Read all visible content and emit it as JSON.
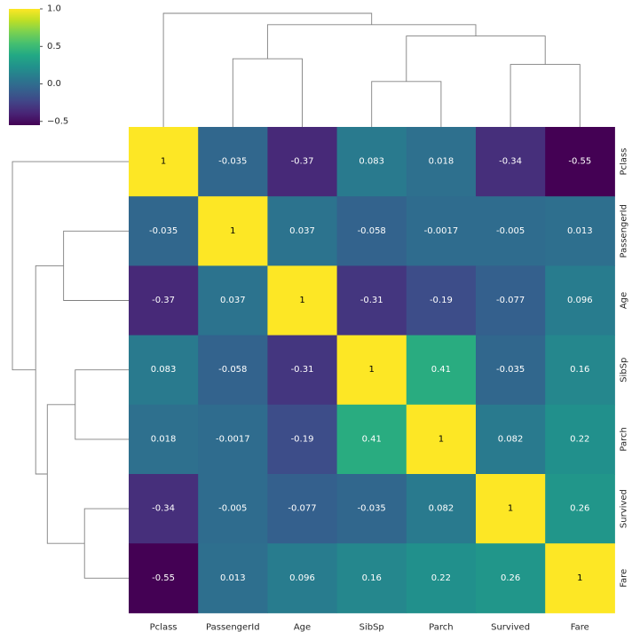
{
  "chart_data": {
    "type": "heatmap",
    "variant": "clustermap",
    "columns": [
      "Pclass",
      "PassengerId",
      "Age",
      "SibSp",
      "Parch",
      "Survived",
      "Fare"
    ],
    "rows": [
      "Pclass",
      "PassengerId",
      "Age",
      "SibSp",
      "Parch",
      "Survived",
      "Fare"
    ],
    "values": [
      [
        1,
        -0.035,
        -0.37,
        0.083,
        0.018,
        -0.34,
        -0.55
      ],
      [
        -0.035,
        1,
        0.037,
        -0.058,
        -0.0017,
        -0.005,
        0.013
      ],
      [
        -0.37,
        0.037,
        1,
        -0.31,
        -0.19,
        -0.077,
        0.096
      ],
      [
        0.083,
        -0.058,
        -0.31,
        1,
        0.41,
        -0.035,
        0.16
      ],
      [
        0.018,
        -0.0017,
        -0.19,
        0.41,
        1,
        0.082,
        0.22
      ],
      [
        -0.34,
        -0.005,
        -0.077,
        -0.035,
        0.082,
        1,
        0.26
      ],
      [
        -0.55,
        0.013,
        0.096,
        0.16,
        0.22,
        0.26,
        1
      ]
    ],
    "annotations": [
      [
        "1",
        "-0.035",
        "-0.37",
        "0.083",
        "0.018",
        "-0.34",
        "-0.55"
      ],
      [
        "-0.035",
        "1",
        "0.037",
        "-0.058",
        "-0.0017",
        "-0.005",
        "0.013"
      ],
      [
        "-0.37",
        "0.037",
        "1",
        "-0.31",
        "-0.19",
        "-0.077",
        "0.096"
      ],
      [
        "0.083",
        "-0.058",
        "-0.31",
        "1",
        "0.41",
        "-0.035",
        "0.16"
      ],
      [
        "0.018",
        "-0.0017",
        "-0.19",
        "0.41",
        "1",
        "0.082",
        "0.22"
      ],
      [
        "-0.34",
        "-0.005",
        "-0.077",
        "-0.035",
        "0.082",
        "1",
        "0.26"
      ],
      [
        "-0.55",
        "0.013",
        "0.096",
        "0.16",
        "0.22",
        "0.26",
        "1"
      ]
    ],
    "colormap": "viridis",
    "vmin": -0.55,
    "vmax": 1,
    "colorbar": {
      "ticks": [
        1.0,
        0.5,
        0.0,
        -0.5
      ],
      "tick_labels": [
        "1.0",
        "0.5",
        "0.0",
        "−0.5"
      ],
      "placement": "top-left"
    },
    "dendrogram": {
      "col_order": [
        0,
        1,
        2,
        3,
        4,
        5,
        6
      ],
      "row_order": [
        0,
        1,
        2,
        3,
        4,
        5,
        6
      ],
      "col_linkage": [
        [
          3,
          4
        ],
        [
          5,
          6
        ],
        [
          7,
          8
        ],
        [
          1,
          2
        ],
        [
          10,
          9
        ],
        [
          0,
          11
        ]
      ],
      "row_linkage": [
        [
          5,
          6
        ],
        [
          3,
          4
        ],
        [
          1,
          2
        ],
        [
          8,
          7
        ],
        [
          10,
          9
        ],
        [
          0,
          11
        ]
      ],
      "col_heights": [
        0.4,
        0.55,
        0.8,
        0.6,
        0.9,
        1.0
      ],
      "row_heights": [
        0.38,
        0.46,
        0.56,
        0.7,
        0.8,
        1.0
      ]
    },
    "grid": false
  },
  "colors": {
    "annotation_light": "#ffffff",
    "annotation_dark": "#000000",
    "dendrogram_line": "#808080",
    "tick_text": "#262626"
  }
}
